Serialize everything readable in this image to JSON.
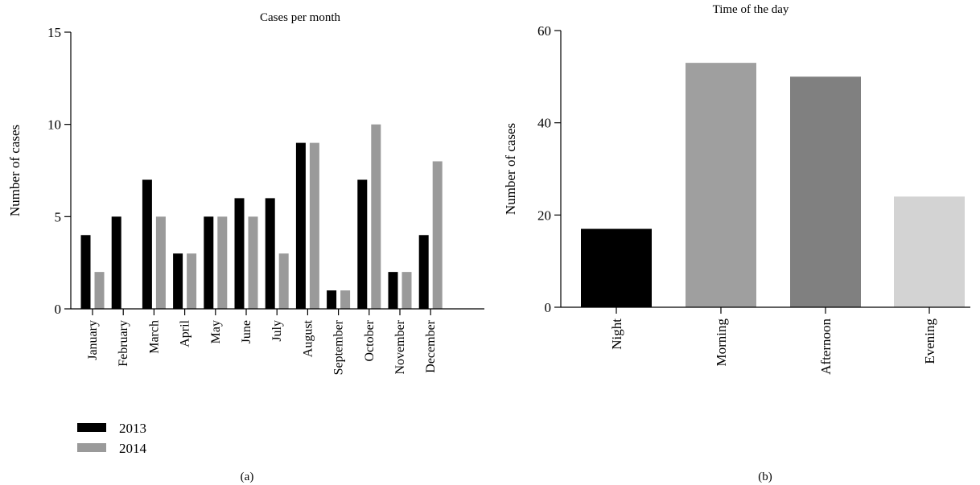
{
  "chart_data": [
    {
      "type": "bar",
      "title": "Cases per month",
      "xlabel": "",
      "ylabel": "Number of cases",
      "ylim": [
        0,
        15
      ],
      "yticks": [
        0,
        5,
        10,
        15
      ],
      "categories": [
        "January",
        "February",
        "March",
        "April",
        "May",
        "June",
        "July",
        "August",
        "September",
        "October",
        "November",
        "December"
      ],
      "series": [
        {
          "name": "2013",
          "color": "#000000",
          "values": [
            4,
            5,
            7,
            3,
            5,
            6,
            6,
            9,
            1,
            7,
            2,
            4
          ]
        },
        {
          "name": "2014",
          "color": "#9a9a9a",
          "values": [
            2,
            0,
            5,
            3,
            5,
            5,
            3,
            9,
            1,
            10,
            2,
            8
          ]
        }
      ],
      "legend": "bottom-left",
      "grid": false,
      "panel_label": "(a)"
    },
    {
      "type": "bar",
      "title": "Time of the day",
      "xlabel": "",
      "ylabel": "Number of cases",
      "ylim": [
        0,
        60
      ],
      "yticks": [
        0,
        20,
        40,
        60
      ],
      "categories": [
        "Night",
        "Morning",
        "Afternoon",
        "Evening"
      ],
      "values": [
        17,
        53,
        50,
        24
      ],
      "colors": [
        "#000000",
        "#9f9f9f",
        "#808080",
        "#d3d3d3"
      ],
      "grid": false,
      "panel_label": "(b)"
    }
  ]
}
